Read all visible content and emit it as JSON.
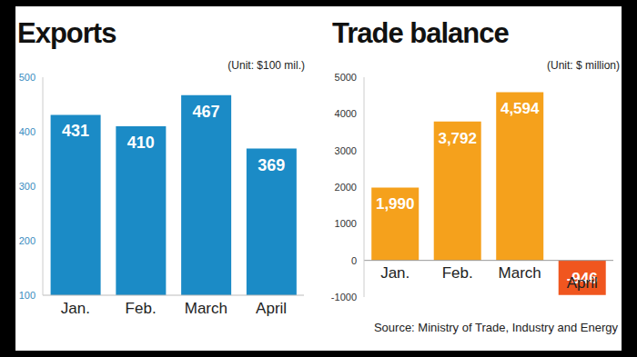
{
  "chart_data": [
    {
      "type": "bar",
      "title": "Exports",
      "subtitle": "(Unit: $100 mil.)",
      "categories": [
        "Jan.",
        "Feb.",
        "March",
        "April"
      ],
      "values": [
        431,
        410,
        467,
        369
      ],
      "color": "#1b8bc6",
      "ylim": [
        100,
        500
      ],
      "yticks": [
        100,
        200,
        300,
        400,
        500
      ],
      "grid": false,
      "data_labels": true
    },
    {
      "type": "bar",
      "title": "Trade balance",
      "subtitle": "(Unit: $ million)",
      "categories": [
        "Jan.",
        "Feb.",
        "March",
        "April"
      ],
      "values": [
        1990,
        3792,
        4594,
        -946
      ],
      "value_labels": [
        "1,990",
        "3,792",
        "4,594",
        "-946"
      ],
      "colors": [
        "#f5a11c",
        "#f5a11c",
        "#f5a11c",
        "#f0561f"
      ],
      "ylim": [
        -1000,
        5000
      ],
      "yticks": [
        -1000,
        0,
        1000,
        2000,
        3000,
        4000,
        5000
      ],
      "grid": false,
      "data_labels": true
    }
  ],
  "source": "Source: Ministry of Trade, Industry and Energy"
}
